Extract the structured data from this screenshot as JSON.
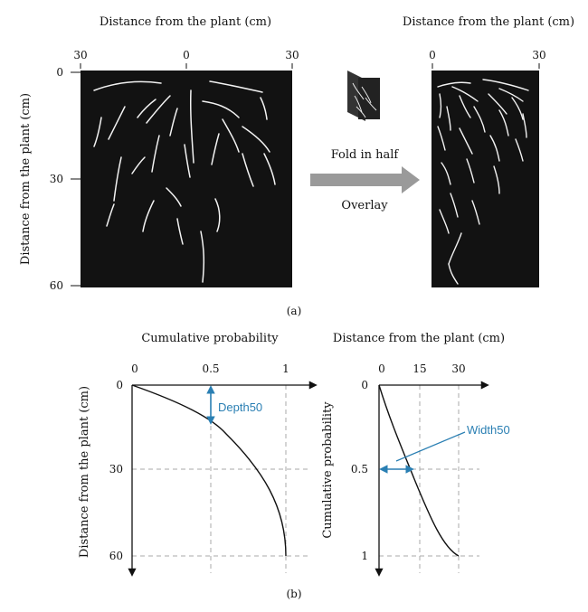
{
  "figure_a": {
    "left_top_axis_label": "Distance from the plant (cm)",
    "right_top_axis_label": "Distance from the plant (cm)",
    "left_vertical_axis_label": "Distance from the plant (cm)",
    "left_x_ticks": [
      "30",
      "0",
      "30"
    ],
    "left_y_ticks": [
      "0",
      "30",
      "60"
    ],
    "right_x_ticks": [
      "0",
      "30"
    ],
    "fold_label": "Fold in half",
    "overlay_label": "Overlay",
    "panel_label": "(a)"
  },
  "figure_b": {
    "panel_label": "(b)",
    "left": {
      "top_label": "Cumulative probability",
      "y_label": "Distance from the plant (cm)",
      "x_ticks": [
        "0",
        "0.5",
        "1"
      ],
      "y_ticks": [
        "0",
        "30",
        "60"
      ],
      "annotation": "Depth50"
    },
    "right": {
      "top_label": "Distance from the plant (cm)",
      "y_label": "Cumulative probability",
      "x_ticks": [
        "0",
        "15",
        "30"
      ],
      "y_ticks": [
        "0",
        "0.5",
        "1"
      ],
      "annotation": "Width50"
    }
  },
  "colors": {
    "root_panel": "#121212",
    "annotation_blue": "#2a7fb3",
    "arrow_gray": "#9a9a9a",
    "guide_dash": "#a9a9a9"
  }
}
